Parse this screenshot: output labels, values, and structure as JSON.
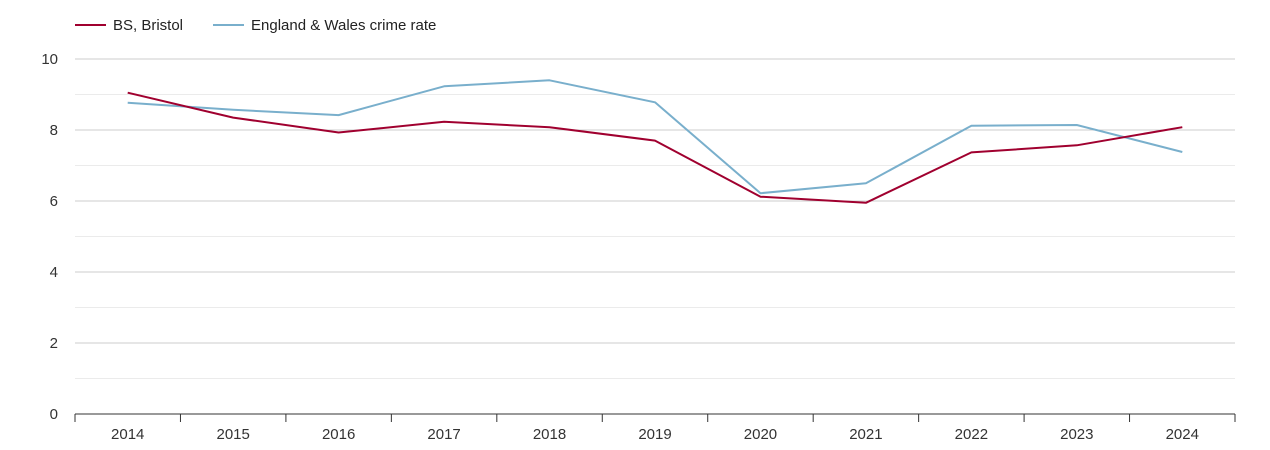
{
  "chart_data": {
    "type": "line",
    "title": "",
    "xlabel": "",
    "ylabel": "",
    "categories": [
      "2014",
      "2015",
      "2016",
      "2017",
      "2018",
      "2019",
      "2020",
      "2021",
      "2022",
      "2023",
      "2024"
    ],
    "ylim": [
      0,
      10
    ],
    "yticks": [
      0,
      2,
      4,
      6,
      8,
      10
    ],
    "grid": true,
    "legend_position": "top-left",
    "series": [
      {
        "name": "BS, Bristol",
        "color": "#a0002f",
        "values": [
          9.05,
          8.35,
          7.93,
          8.23,
          8.08,
          7.7,
          6.12,
          5.95,
          7.37,
          7.57,
          8.08
        ]
      },
      {
        "name": "England & Wales crime rate",
        "color": "#79afcc",
        "values": [
          8.77,
          8.57,
          8.42,
          9.23,
          9.4,
          8.78,
          6.22,
          6.5,
          8.12,
          8.14,
          7.38
        ]
      }
    ]
  }
}
